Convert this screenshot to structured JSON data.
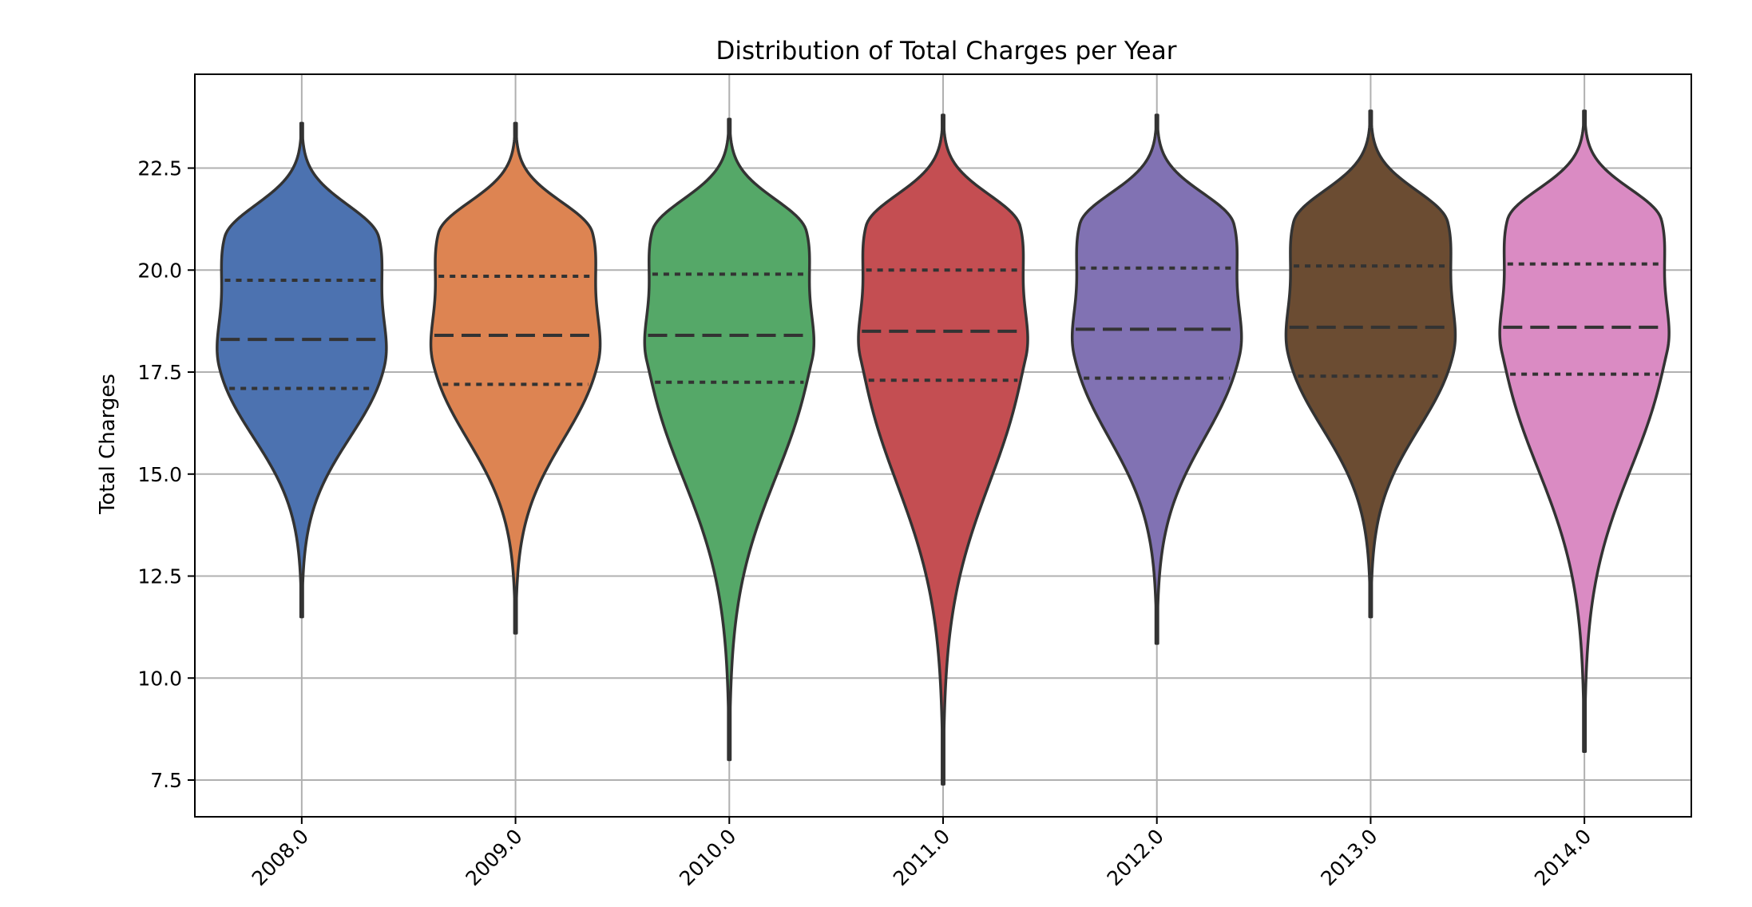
{
  "chart_data": {
    "type": "violin",
    "title": "Distribution of Total Charges per Year",
    "xlabel": "",
    "ylabel": "Total Charges",
    "ylim": [
      6.6,
      24.8
    ],
    "yticks": [
      7.5,
      10.0,
      12.5,
      15.0,
      17.5,
      20.0,
      22.5
    ],
    "ytick_labels": [
      "7.5",
      "10.0",
      "12.5",
      "15.0",
      "17.5",
      "20.0",
      "22.5"
    ],
    "grid": true,
    "categories": [
      "2008.0",
      "2009.0",
      "2010.0",
      "2011.0",
      "2012.0",
      "2013.0",
      "2014.0"
    ],
    "colors": [
      "#4c72b0",
      "#dd8452",
      "#55a868",
      "#c44e52",
      "#8172b3",
      "#6b4c32",
      "#da8bc3"
    ],
    "series": [
      {
        "category": "2008.0",
        "min": 11.5,
        "q1": 17.1,
        "median": 18.3,
        "q3": 19.75,
        "max": 23.6
      },
      {
        "category": "2009.0",
        "min": 11.1,
        "q1": 17.2,
        "median": 18.4,
        "q3": 19.85,
        "max": 23.6
      },
      {
        "category": "2010.0",
        "min": 8.0,
        "q1": 17.25,
        "median": 18.4,
        "q3": 19.9,
        "max": 23.7
      },
      {
        "category": "2011.0",
        "min": 7.4,
        "q1": 17.3,
        "median": 18.5,
        "q3": 20.0,
        "max": 23.8
      },
      {
        "category": "2012.0",
        "min": 10.85,
        "q1": 17.35,
        "median": 18.55,
        "q3": 20.05,
        "max": 23.8
      },
      {
        "category": "2013.0",
        "min": 11.5,
        "q1": 17.4,
        "median": 18.6,
        "q3": 20.1,
        "max": 23.9
      },
      {
        "category": "2014.0",
        "min": 8.2,
        "q1": 17.45,
        "median": 18.6,
        "q3": 20.15,
        "max": 23.9
      }
    ]
  }
}
